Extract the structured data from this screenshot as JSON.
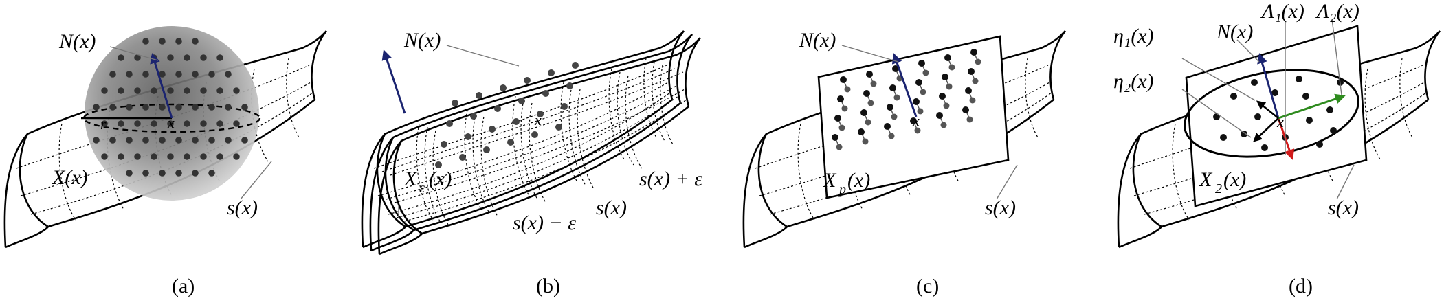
{
  "panels": [
    {
      "caption": "(a)",
      "labels": {
        "normal": "N(x)",
        "point": "x",
        "radius": "r",
        "set": "X(x)",
        "surface": "s(x)"
      }
    },
    {
      "caption": "(b)",
      "labels": {
        "normal": "N(x)",
        "point": "x",
        "set_main": "X",
        "set_sub": "ε",
        "surface": "s(x)",
        "surface_minus": "s(x) − ε",
        "surface_plus": "s(x) + ε"
      }
    },
    {
      "caption": "(c)",
      "labels": {
        "normal": "N(x)",
        "point": "x",
        "set_main": "X",
        "set_sub": "p",
        "set_tail": "(x)",
        "surface": "s(x)"
      }
    },
    {
      "caption": "(d)",
      "labels": {
        "normal": "N(x)",
        "point": "x",
        "eta1": "η₁(x)",
        "eta2": "η₂(x)",
        "lambda1": "Λ₁(x)",
        "lambda2": "Λ₂(x)",
        "set_main": "X",
        "set_sub": "2",
        "set_tail": "(x)",
        "surface": "s(x)"
      }
    }
  ],
  "colors": {
    "normal_arrow": "#1b2470",
    "lambda1_arrow": "#d11a1a",
    "lambda2_arrow": "#2e8b1e",
    "eta_arrow": "#000000",
    "point": "#333333",
    "sphere": "#9a9a9a"
  }
}
